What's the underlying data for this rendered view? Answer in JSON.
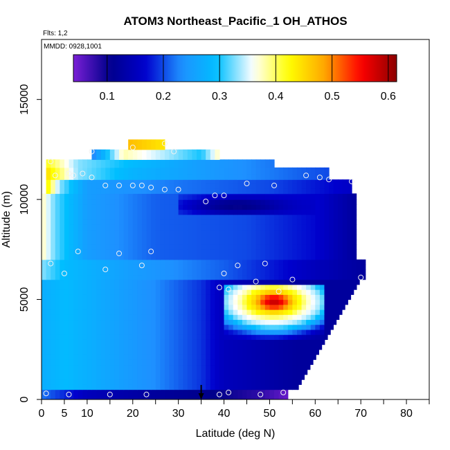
{
  "chart_data": {
    "type": "heatmap",
    "title": "ATOM3 Northeast_Pacific_1 OH_ATHOS",
    "flights_label": "Flts: 1,2",
    "dates_label": "MMDD: 0928,1001",
    "xlabel": "Latitude (deg N)",
    "ylabel": "Altitude (m)",
    "xlim": [
      0,
      85
    ],
    "ylim": [
      0,
      18000
    ],
    "x_ticks": [
      0,
      5,
      10,
      20,
      30,
      40,
      50,
      60,
      70,
      80
    ],
    "x_minor_ticks": [
      15,
      25,
      35,
      45,
      55,
      65,
      75,
      85
    ],
    "y_ticks": [
      0,
      5000,
      10000,
      15000
    ],
    "colorbar": {
      "min": 0.04,
      "max": 0.615,
      "ticks": [
        0.1,
        0.2,
        0.3,
        0.4,
        0.5,
        0.6
      ],
      "colors": [
        "#7a1fd6",
        "#00008b",
        "#0000cd",
        "#1e90ff",
        "#00bfff",
        "#ffffff",
        "#ffff00",
        "#ffa500",
        "#ff0000",
        "#8b0000"
      ]
    },
    "arrow_latitude": 35,
    "layers": [
      {
        "z0": 0,
        "z1": 500,
        "lat_min": 0,
        "lat_max": 54,
        "profile": [
          [
            0,
            0.22
          ],
          [
            10,
            0.15
          ],
          [
            25,
            0.12
          ],
          [
            40,
            0.1
          ],
          [
            48,
            0.08
          ],
          [
            54,
            0.05
          ]
        ]
      },
      {
        "z0": 500,
        "z1": 6000,
        "lat_min": 0,
        "lat_max": 56,
        "lat_max_top": 70,
        "profile": [
          [
            0,
            0.27
          ],
          [
            5,
            0.29
          ],
          [
            15,
            0.26
          ],
          [
            25,
            0.23
          ],
          [
            35,
            0.19
          ],
          [
            40,
            0.15
          ],
          [
            56,
            0.12
          ]
        ]
      },
      {
        "z0": 6000,
        "z1": 7000,
        "lat_min": 0,
        "lat_max": 71,
        "profile": [
          [
            0,
            0.33
          ],
          [
            5,
            0.29
          ],
          [
            20,
            0.25
          ],
          [
            40,
            0.21
          ],
          [
            60,
            0.15
          ],
          [
            71,
            0.12
          ]
        ]
      },
      {
        "z0": 7000,
        "z1": 10300,
        "lat_min": 0,
        "lat_max": 69,
        "profile": [
          [
            0,
            0.38
          ],
          [
            3,
            0.32
          ],
          [
            10,
            0.25
          ],
          [
            25,
            0.21
          ],
          [
            45,
            0.2
          ],
          [
            60,
            0.17
          ],
          [
            69,
            0.12
          ]
        ]
      },
      {
        "z0": 10300,
        "z1": 11000,
        "lat_min": 1,
        "lat_max": 68,
        "profile": [
          [
            1,
            0.44
          ],
          [
            4,
            0.33
          ],
          [
            10,
            0.25
          ],
          [
            30,
            0.22
          ],
          [
            50,
            0.2
          ],
          [
            68,
            0.16
          ]
        ]
      },
      {
        "z0": 11000,
        "z1": 11600,
        "lat_min": 1,
        "lat_max": 63,
        "profile": [
          [
            1,
            0.45
          ],
          [
            8,
            0.33
          ],
          [
            20,
            0.28
          ],
          [
            40,
            0.24
          ],
          [
            63,
            0.2
          ]
        ]
      },
      {
        "z0": 11600,
        "z1": 12000,
        "lat_min": 1,
        "lat_max": 51,
        "profile": [
          [
            1,
            0.42
          ],
          [
            8,
            0.33
          ],
          [
            20,
            0.29
          ],
          [
            35,
            0.25
          ],
          [
            51,
            0.22
          ]
        ]
      },
      {
        "z0": 12000,
        "z1": 12500,
        "lat_min": 11,
        "lat_max": 39,
        "profile": [
          [
            11,
            0.22
          ],
          [
            18,
            0.38
          ],
          [
            27,
            0.34
          ],
          [
            35,
            0.3
          ],
          [
            39,
            0.38
          ]
        ]
      },
      {
        "z0": 12500,
        "z1": 13000,
        "lat_min": 19,
        "lat_max": 27,
        "profile": [
          [
            19,
            0.47
          ],
          [
            27,
            0.44
          ]
        ]
      }
    ],
    "overlays": [
      {
        "z0": 9200,
        "z1": 10300,
        "lat_min": 30,
        "lat_max": 60,
        "center": [
          43,
          9700
        ],
        "rx": 12,
        "rz": 500,
        "value": 0.1
      },
      {
        "z0": 3000,
        "z1": 5700,
        "lat_min": 40,
        "lat_max": 62,
        "center": [
          51,
          4900
        ],
        "rx": 6,
        "rz": 700,
        "value": 0.58,
        "edge_value": 0.35
      }
    ],
    "points": [
      {
        "lat": 1,
        "alt": 300
      },
      {
        "lat": 6,
        "alt": 250
      },
      {
        "lat": 15,
        "alt": 250
      },
      {
        "lat": 23,
        "alt": 250
      },
      {
        "lat": 39,
        "alt": 250
      },
      {
        "lat": 41,
        "alt": 350
      },
      {
        "lat": 48,
        "alt": 250
      },
      {
        "lat": 53,
        "alt": 350
      },
      {
        "lat": 5,
        "alt": 6300
      },
      {
        "lat": 2,
        "alt": 6800
      },
      {
        "lat": 8,
        "alt": 7400
      },
      {
        "lat": 14,
        "alt": 6500
      },
      {
        "lat": 17,
        "alt": 7300
      },
      {
        "lat": 22,
        "alt": 6700
      },
      {
        "lat": 24,
        "alt": 7400
      },
      {
        "lat": 39,
        "alt": 5600
      },
      {
        "lat": 40,
        "alt": 6300
      },
      {
        "lat": 41,
        "alt": 5500
      },
      {
        "lat": 43,
        "alt": 6700
      },
      {
        "lat": 47,
        "alt": 5900
      },
      {
        "lat": 49,
        "alt": 6800
      },
      {
        "lat": 52,
        "alt": 5400
      },
      {
        "lat": 55,
        "alt": 6000
      },
      {
        "lat": 70,
        "alt": 6100
      },
      {
        "lat": 14,
        "alt": 10700
      },
      {
        "lat": 17,
        "alt": 10700
      },
      {
        "lat": 20,
        "alt": 10700
      },
      {
        "lat": 22,
        "alt": 10700
      },
      {
        "lat": 24,
        "alt": 10600
      },
      {
        "lat": 27,
        "alt": 10500
      },
      {
        "lat": 30,
        "alt": 10500
      },
      {
        "lat": 36,
        "alt": 9900
      },
      {
        "lat": 38,
        "alt": 10200
      },
      {
        "lat": 40,
        "alt": 10200
      },
      {
        "lat": 45,
        "alt": 10800
      },
      {
        "lat": 51,
        "alt": 10700
      },
      {
        "lat": 58,
        "alt": 11200
      },
      {
        "lat": 61,
        "alt": 11100
      },
      {
        "lat": 63,
        "alt": 11000
      },
      {
        "lat": 68,
        "alt": 10900
      },
      {
        "lat": 3,
        "alt": 11200
      },
      {
        "lat": 6,
        "alt": 11300
      },
      {
        "lat": 7,
        "alt": 11200
      },
      {
        "lat": 9,
        "alt": 11300
      },
      {
        "lat": 11,
        "alt": 11100
      },
      {
        "lat": 2,
        "alt": 11900
      },
      {
        "lat": 11,
        "alt": 12400
      },
      {
        "lat": 20,
        "alt": 12600
      },
      {
        "lat": 27,
        "alt": 12800
      },
      {
        "lat": 29,
        "alt": 12400
      }
    ]
  }
}
